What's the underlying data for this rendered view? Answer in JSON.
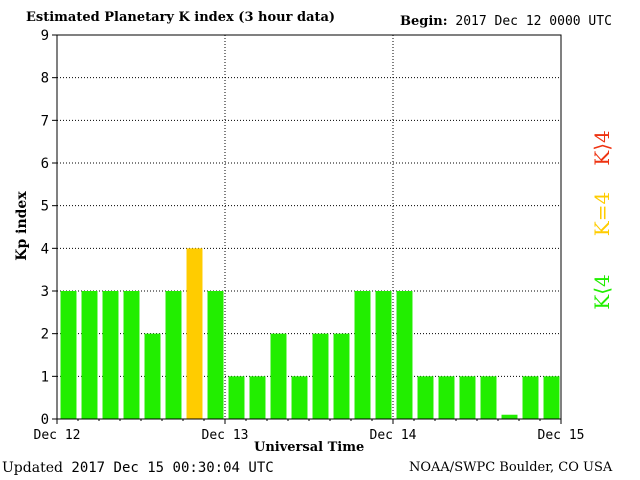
{
  "header": {
    "title": "Estimated Planetary K index (3 hour data)",
    "begin_label": "Begin:",
    "begin_value": "2017 Dec 12 0000 UTC"
  },
  "footer": {
    "updated_label": "Updated",
    "updated_value": "2017 Dec 15 00:30:04 UTC",
    "credit": "NOAA/SWPC Boulder, CO USA"
  },
  "legend": {
    "below": "K⟨4",
    "equal": "K=4",
    "above": "K⟩4"
  },
  "colors": {
    "below": "#22ee00",
    "equal": "#ffcc00",
    "above": "#ee3311",
    "grid": "#000000",
    "axis": "#000000"
  },
  "chart_data": {
    "type": "bar",
    "xlabel": "Universal Time",
    "ylabel": "Kp index",
    "ylim": [
      0,
      9
    ],
    "yticks": [
      0,
      1,
      2,
      3,
      4,
      5,
      6,
      7,
      8,
      9
    ],
    "xlim": [
      "2017-12-12 00:00",
      "2017-12-15 00:00"
    ],
    "xticks": [
      "Dec 12",
      "Dec 13",
      "Dec 14",
      "Dec 15"
    ],
    "interval_hours": 3,
    "grid": true,
    "values": [
      3,
      3,
      3,
      3,
      2,
      3,
      4,
      3,
      1,
      1,
      2,
      1,
      2,
      2,
      3,
      3,
      3,
      1,
      1,
      1,
      1,
      0.1,
      1,
      1
    ],
    "color_rule": "green if K<4, yellow if K=4, red if K>4"
  }
}
